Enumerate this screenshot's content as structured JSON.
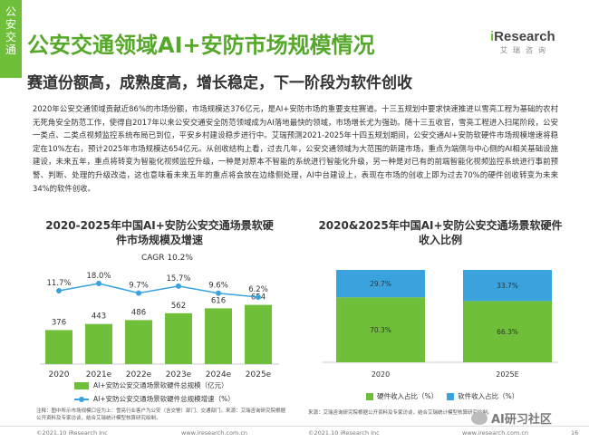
{
  "side_tab": [
    "公",
    "安",
    "交",
    "通"
  ],
  "header": {
    "title": "公安交通领域AI+安防市场规模情况",
    "subtitle": "赛道份额高，成熟度高，增长稳定，下一阶段为软件创收"
  },
  "logo": {
    "brand_prefix": "i",
    "brand_main": "Research",
    "sub": "艾瑞咨询"
  },
  "body_text": "2020年公安交通领域贡献近86%的市场份额，市场规模达376亿元，是AI+安防市场的重要支柱赛道。十三五规划中要求快速推进以雪亮工程为基础的农村无死角安全防范工作，使得自2017年以来公安交通安全防范领域成为AI落地最快的领域，市场增长尤为强劲。随十三五收官，雪亮工程进入扫尾阶段，公安一类点、二类点视频监控系统布局已到位，平安乡村建设稳步进行中。艾瑞预测2021-2025年十四五规划期间，公安交通AI+安防软硬件市场规模增速将稳定在10%左右，预计2025年市场规模达654亿元。从创收结构上看，过去几年，公安交通领域为大范围的新建市场，重点为端侧与中心侧的AI相关基础设施建设，未来五年，重点将转变为智能化视频监控升级，一种是对原本不智能的系统进行智能化升级，另一种是对已有的前端智能化视频监控系统进行事前预警、判断、处理的升级改造，这也意味着未来五年的重点将会放在边缘侧处理，AI中台建设上，表现在市场的创收上即为过去70%的硬件创收转变为未来34%的软件创收。",
  "chart_data": [
    {
      "type": "bar",
      "title": "2020-2025年中国AI+安防公安交通场景软硬件市场规模及增速",
      "annotation": "CAGR 10.2%",
      "categories": [
        "2020",
        "2021e",
        "2022e",
        "2023e",
        "2024e",
        "2025e"
      ],
      "series": [
        {
          "name": "AI+安防公安交通场景软硬件总规模（亿元）",
          "kind": "bar",
          "color": "#6fbf3a",
          "values": [
            376,
            443,
            486,
            562,
            616,
            654
          ],
          "labels": [
            "376",
            "443",
            "486",
            "562",
            "616",
            "654"
          ]
        },
        {
          "name": "AI+安防公安交通场景软硬件总规模增速（%）",
          "kind": "line",
          "color": "#3aa3dd",
          "values": [
            11.7,
            18.0,
            9.7,
            15.7,
            9.6,
            6.2
          ],
          "labels": [
            "11.7%",
            "18.0%",
            "9.7%",
            "15.7%",
            "9.6%",
            "6.2%"
          ]
        }
      ],
      "ylim": [
        0,
        700
      ],
      "ylim2": [
        0,
        25
      ],
      "legend": "bottom"
    },
    {
      "type": "bar",
      "stacked": true,
      "title": "2020&2025年中国AI+安防公安交通场景软硬件收入比例",
      "categories": [
        "2020",
        "2025E"
      ],
      "series": [
        {
          "name": "硬件收入占比（%）",
          "color": "#6fbf3a",
          "values": [
            70.3,
            66.3
          ],
          "labels": [
            "70.3%",
            "66.3%"
          ]
        },
        {
          "name": "软件收入占比（%）",
          "color": "#3aa3dd",
          "values": [
            29.7,
            33.7
          ],
          "labels": [
            "29.7%",
            "33.7%"
          ]
        }
      ],
      "ylim": [
        0,
        100
      ],
      "legend": "bottom"
    }
  ],
  "notes": {
    "left": "注释：图中所示市场规模口径为上：雪亮行业客户为公安（含交警）部门、交通部门。来源：艾瑞咨询研究院根据公开资料及专家访谈，结合艾瑞统计模型核算研究绘制。",
    "right": "来源：艾瑞咨询研究院根据公开资料及专家访谈，结合艾瑞统计模型核算研究绘制。"
  },
  "footer": {
    "copyright_left": "©2021.10 iResearch Inc",
    "site_left": "www.iresearch.com.cn",
    "copyright_right": "©2021.10 iResearch Inc",
    "site_right": "www.iresearch.com.cn",
    "page": "16"
  },
  "watermark": "AI研习社区",
  "colors": {
    "brand_green": "#6fbf3a",
    "line_blue": "#3aa3dd"
  }
}
